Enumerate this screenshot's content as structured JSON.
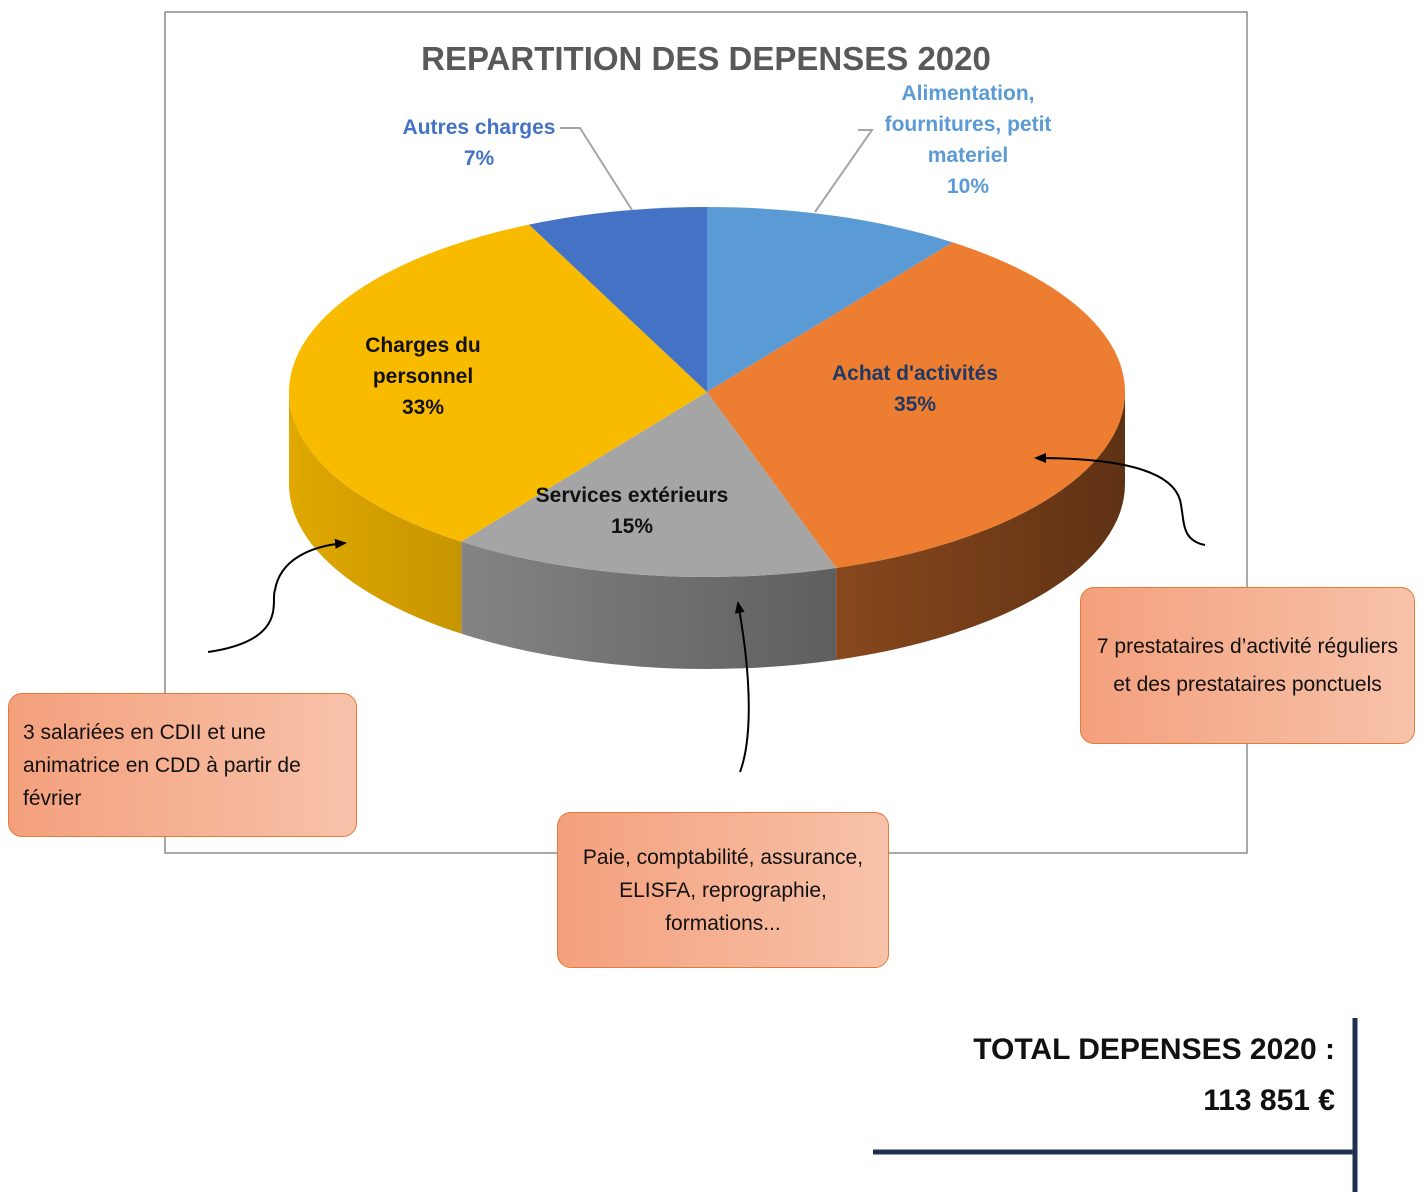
{
  "chart_data": {
    "type": "pie",
    "title": "REPARTITION DES DEPENSES 2020",
    "categories": [
      "Alimentation, fournitures, petit materiel",
      "Achat d'activités",
      "Services extérieurs",
      "Charges du personnel",
      "Autres charges"
    ],
    "values": [
      10,
      35,
      15,
      33,
      7
    ],
    "value_labels": [
      "10%",
      "35%",
      "15%",
      "33%",
      "7%"
    ],
    "colors": [
      "#5b9bd5",
      "#ed7d31",
      "#a5a5a5",
      "#f9bb00",
      "#4472c4"
    ]
  },
  "callouts": [
    "3 salariées en CDII et une animatrice en CDD à partir de février",
    "Paie, comptabilité, assurance, ELISFA, reprographie, formations...",
    "7 prestataires d’activité réguliers et des prestataires ponctuels"
  ],
  "total": {
    "label": "TOTAL DEPENSES 2020 :",
    "amount": "113 851 €"
  }
}
